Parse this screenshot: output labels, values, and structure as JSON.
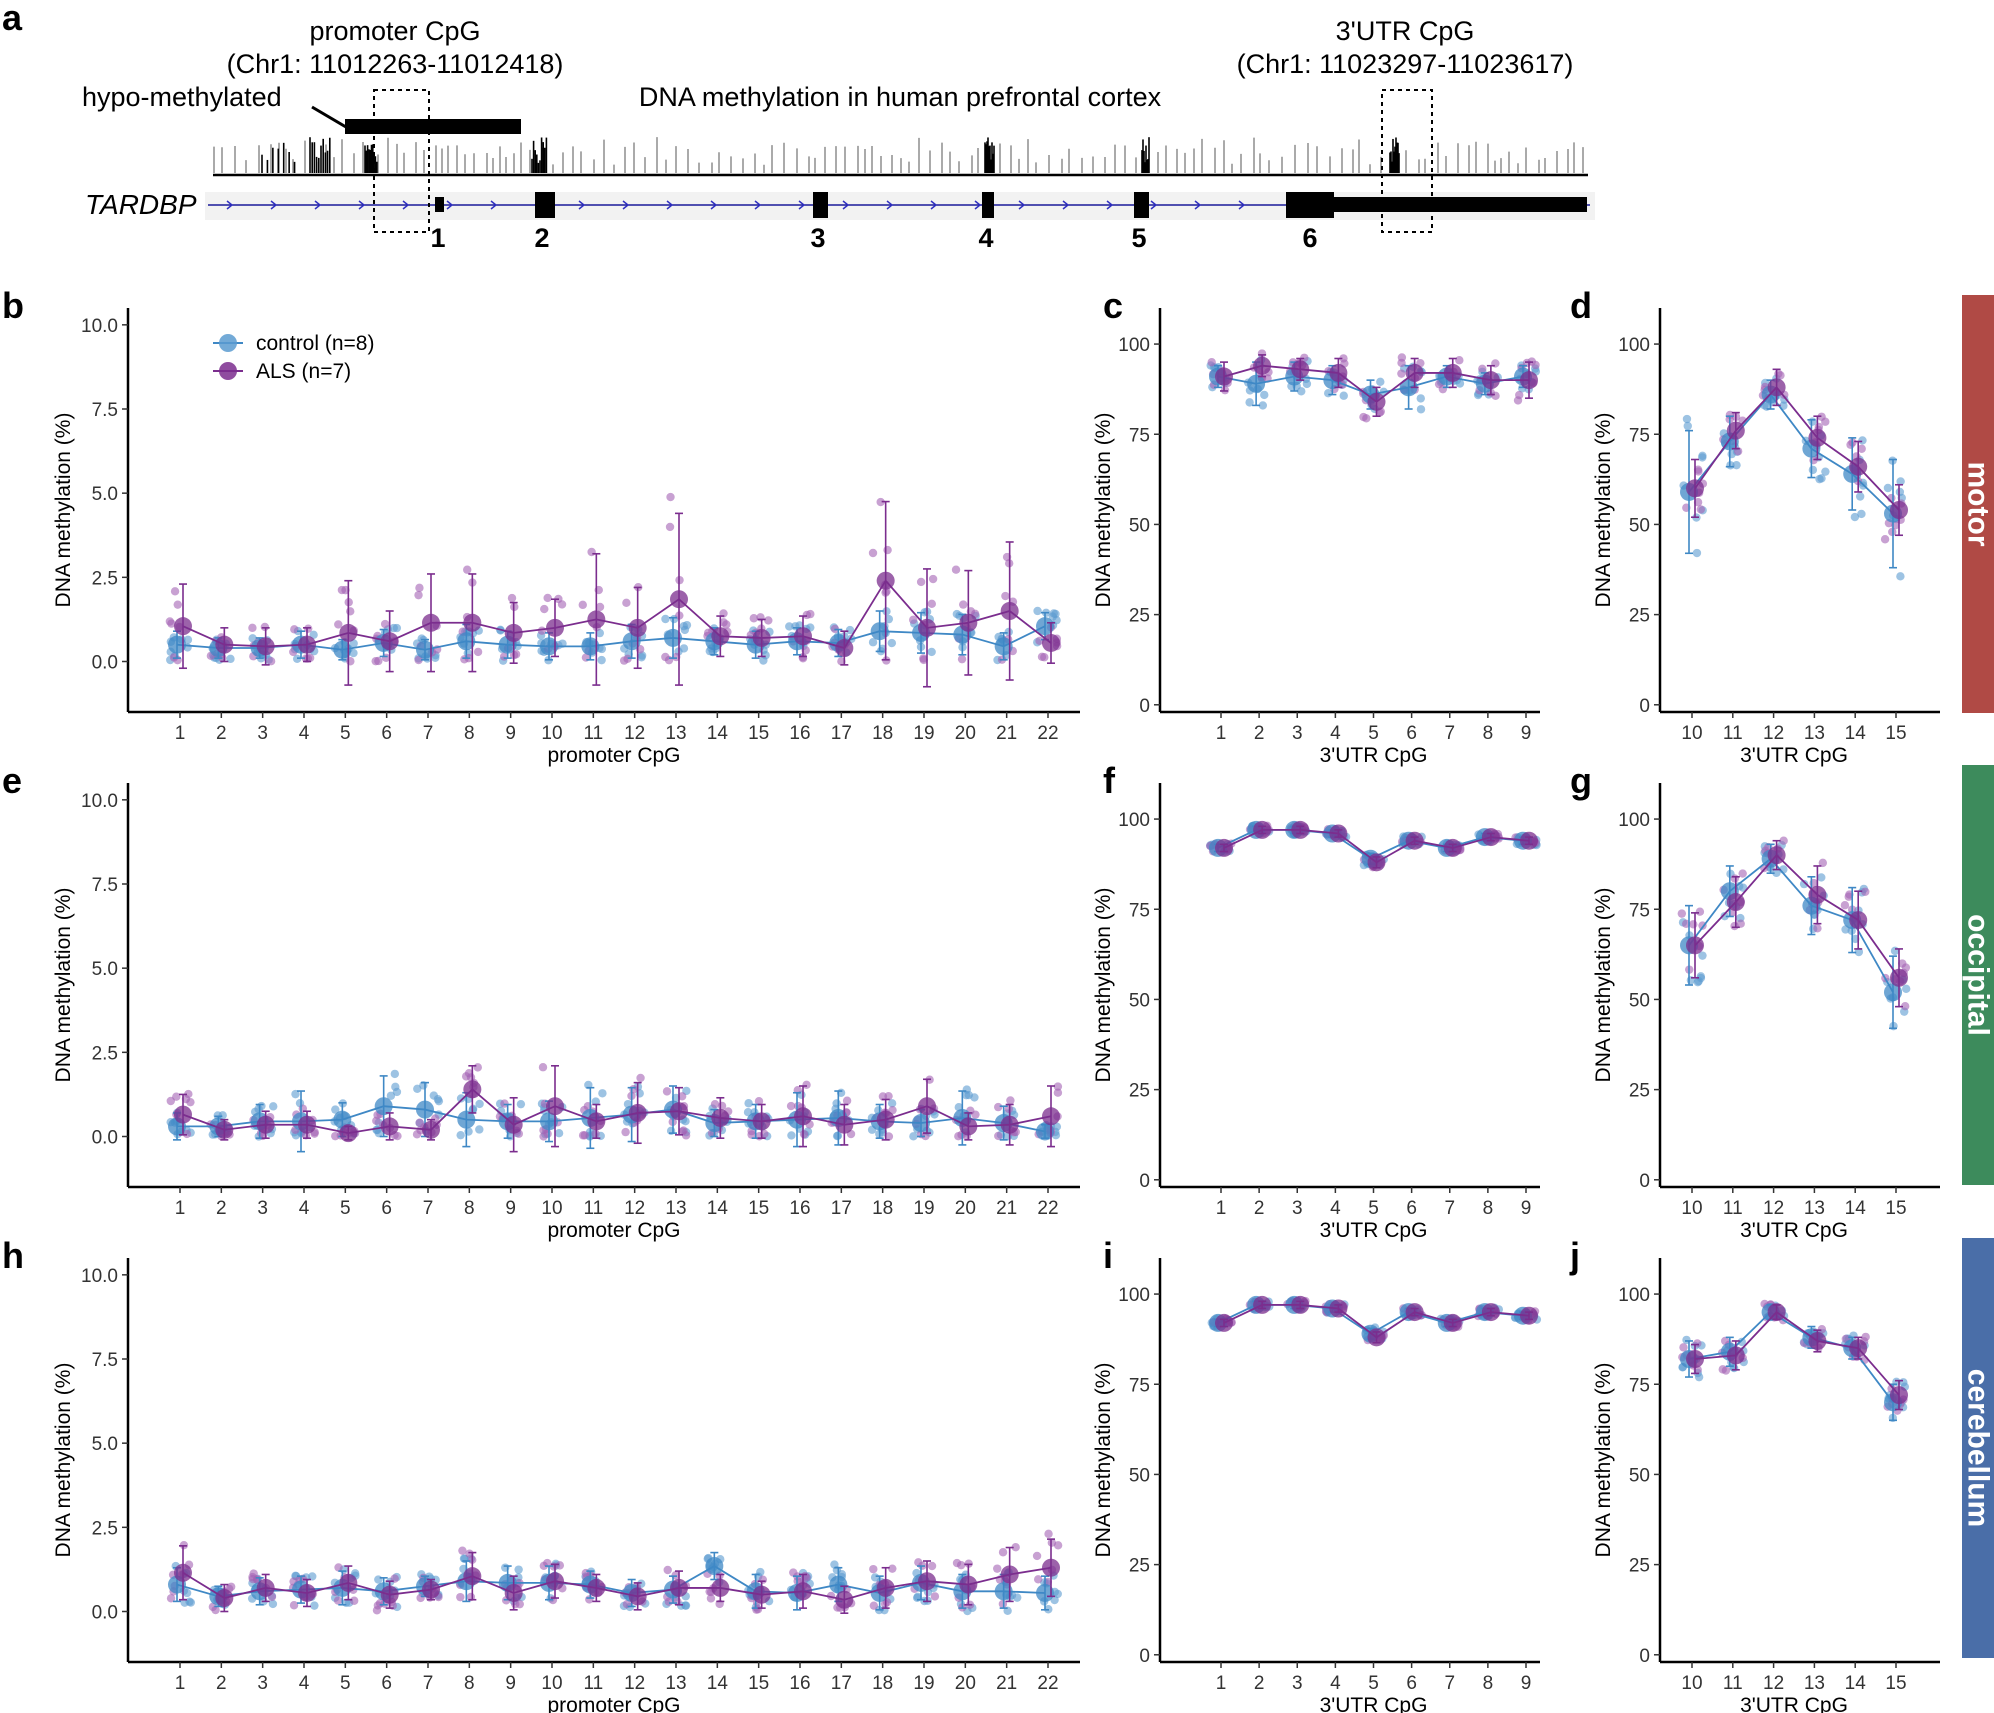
{
  "colors": {
    "control": "#5b9bd0",
    "control_line": "#3f88c5",
    "als": "#7b2d8e",
    "als_light": "#a463b4",
    "motor": "#b04a45",
    "occipital": "#3d8b5c",
    "cerebellum": "#4a6ea8"
  },
  "panel_a": {
    "letter": "a",
    "gene": "TARDBP",
    "promoter_label": "promoter CpG",
    "promoter_coords": "(Chr1: 11012263-11012418)",
    "utr_label": "3'UTR CpG",
    "utr_coords": "(Chr1: 11023297-11023617)",
    "hypo_label": "hypo-methylated",
    "track_title": "DNA methylation in human prefrontal cortex",
    "exons": [
      "1",
      "2",
      "3",
      "4",
      "5",
      "6"
    ]
  },
  "legend": {
    "control": "control (n=8)",
    "als": "ALS (n=7)"
  },
  "regions": [
    "motor",
    "occipital",
    "cerebellum"
  ],
  "axis_titles": {
    "y": "DNA methylation (%)",
    "x_promoter": "promoter CpG",
    "x_utr": "3'UTR CpG"
  },
  "chart_data": [
    {
      "panel": "b",
      "region": "motor",
      "type": "scatter-line",
      "xlabel": "promoter CpG",
      "ylabel": "DNA methylation (%)",
      "x": [
        1,
        2,
        3,
        4,
        5,
        6,
        7,
        8,
        9,
        10,
        11,
        12,
        13,
        14,
        15,
        16,
        17,
        18,
        19,
        20,
        21,
        22
      ],
      "ylim": [
        -1.5,
        10.5
      ],
      "yticks": [
        "0.0",
        "2.5",
        "5.0",
        "7.5",
        "10.0"
      ],
      "series": [
        {
          "name": "control (n=8)",
          "values": [
            0.5,
            0.4,
            0.4,
            0.5,
            0.35,
            0.55,
            0.35,
            0.6,
            0.5,
            0.45,
            0.45,
            0.6,
            0.7,
            0.6,
            0.5,
            0.6,
            0.55,
            0.9,
            0.85,
            0.8,
            0.45,
            1.05
          ],
          "sd": [
            0.4,
            0.3,
            0.3,
            0.4,
            0.3,
            0.4,
            0.3,
            0.5,
            0.4,
            0.4,
            0.4,
            0.5,
            0.6,
            0.4,
            0.4,
            0.4,
            0.4,
            0.6,
            0.6,
            0.6,
            0.4,
            0.4
          ]
        },
        {
          "name": "ALS (n=7)",
          "values": [
            1.05,
            0.5,
            0.45,
            0.5,
            0.85,
            0.6,
            1.15,
            1.15,
            0.85,
            1.0,
            1.25,
            1.0,
            1.85,
            0.75,
            0.7,
            0.75,
            0.4,
            2.4,
            1.0,
            1.15,
            1.5,
            0.55
          ],
          "sd": [
            1.25,
            0.5,
            0.55,
            0.5,
            1.55,
            0.9,
            1.45,
            1.45,
            0.9,
            0.85,
            1.95,
            1.2,
            2.55,
            0.6,
            0.55,
            0.6,
            0.5,
            2.35,
            1.75,
            1.55,
            2.05,
            0.6
          ]
        }
      ]
    },
    {
      "panel": "c",
      "region": "motor",
      "type": "scatter-line",
      "xlabel": "3'UTR CpG",
      "ylabel": "DNA methylation (%)",
      "x": [
        1,
        2,
        3,
        4,
        5,
        6,
        7,
        8,
        9
      ],
      "ylim": [
        -2,
        110
      ],
      "yticks": [
        "0",
        "25",
        "50",
        "75",
        "100"
      ],
      "series": [
        {
          "name": "control (n=8)",
          "values": [
            91,
            89,
            91,
            90,
            86,
            88,
            91,
            89,
            91
          ],
          "sd": [
            3,
            6,
            4,
            4,
            4,
            6,
            3,
            3,
            3
          ]
        },
        {
          "name": "ALS (n=7)",
          "values": [
            91,
            94,
            93,
            92,
            84,
            92,
            92,
            90,
            90
          ],
          "sd": [
            4,
            3,
            3,
            4,
            4,
            4,
            4,
            4,
            5
          ]
        }
      ]
    },
    {
      "panel": "d",
      "region": "motor",
      "type": "scatter-line",
      "xlabel": "3'UTR CpG",
      "ylabel": "DNA methylation (%)",
      "x": [
        10,
        11,
        12,
        13,
        14,
        15
      ],
      "ylim": [
        -2,
        110
      ],
      "yticks": [
        "0",
        "25",
        "50",
        "75",
        "100"
      ],
      "series": [
        {
          "name": "control (n=8)",
          "values": [
            59,
            73,
            86,
            71,
            64,
            53
          ],
          "sd": [
            17,
            7,
            4,
            8,
            10,
            15
          ]
        },
        {
          "name": "ALS (n=7)",
          "values": [
            60,
            76,
            88,
            74,
            66,
            54
          ],
          "sd": [
            8,
            5,
            5,
            6,
            7,
            7
          ]
        }
      ]
    },
    {
      "panel": "e",
      "region": "occipital",
      "type": "scatter-line",
      "xlabel": "promoter CpG",
      "ylabel": "DNA methylation (%)",
      "x": [
        1,
        2,
        3,
        4,
        5,
        6,
        7,
        8,
        9,
        10,
        11,
        12,
        13,
        14,
        15,
        16,
        17,
        18,
        19,
        20,
        21,
        22
      ],
      "ylim": [
        -1.5,
        10.5
      ],
      "yticks": [
        "0.0",
        "2.5",
        "5.0",
        "7.5",
        "10.0"
      ],
      "series": [
        {
          "name": "control (n=8)",
          "values": [
            0.3,
            0.3,
            0.45,
            0.45,
            0.5,
            0.9,
            0.8,
            0.5,
            0.45,
            0.45,
            0.55,
            0.65,
            0.8,
            0.4,
            0.45,
            0.5,
            0.55,
            0.45,
            0.4,
            0.55,
            0.4,
            0.15
          ],
          "sd": [
            0.4,
            0.3,
            0.5,
            0.9,
            0.5,
            0.9,
            0.8,
            0.8,
            0.5,
            0.6,
            0.9,
            0.8,
            0.7,
            0.4,
            0.5,
            0.8,
            0.8,
            0.5,
            0.4,
            0.8,
            0.5,
            0.2
          ]
        },
        {
          "name": "ALS (n=7)",
          "values": [
            0.65,
            0.2,
            0.35,
            0.35,
            0.1,
            0.3,
            0.2,
            1.4,
            0.35,
            0.9,
            0.45,
            0.7,
            0.75,
            0.55,
            0.45,
            0.6,
            0.35,
            0.5,
            0.9,
            0.3,
            0.35,
            0.6
          ],
          "sd": [
            0.6,
            0.3,
            0.4,
            0.4,
            0.2,
            0.4,
            0.3,
            0.7,
            0.8,
            1.2,
            0.5,
            0.9,
            0.7,
            0.6,
            0.5,
            0.9,
            0.6,
            0.6,
            0.8,
            0.4,
            0.6,
            0.9
          ]
        }
      ]
    },
    {
      "panel": "f",
      "region": "occipital",
      "type": "scatter-line",
      "xlabel": "3'UTR CpG",
      "ylabel": "DNA methylation (%)",
      "x": [
        1,
        2,
        3,
        4,
        5,
        6,
        7,
        8,
        9
      ],
      "ylim": [
        -2,
        110
      ],
      "yticks": [
        "0",
        "25",
        "50",
        "75",
        "100"
      ],
      "series": [
        {
          "name": "control (n=8)",
          "values": [
            92,
            97,
            97,
            96,
            89,
            94,
            92,
            95,
            94
          ],
          "sd": [
            1,
            1,
            1,
            1,
            1.5,
            1,
            1,
            1,
            1
          ]
        },
        {
          "name": "ALS (n=7)",
          "values": [
            92,
            97,
            97,
            96,
            88,
            94,
            92,
            95,
            94
          ],
          "sd": [
            1,
            1,
            1,
            1,
            1.5,
            1,
            1,
            1,
            1
          ]
        }
      ]
    },
    {
      "panel": "g",
      "region": "occipital",
      "type": "scatter-line",
      "xlabel": "3'UTR CpG",
      "ylabel": "DNA methylation (%)",
      "x": [
        10,
        11,
        12,
        13,
        14,
        15
      ],
      "ylim": [
        -2,
        110
      ],
      "yticks": [
        "0",
        "25",
        "50",
        "75",
        "100"
      ],
      "series": [
        {
          "name": "control (n=8)",
          "values": [
            65,
            80,
            89,
            76,
            72,
            52
          ],
          "sd": [
            11,
            7,
            4,
            8,
            9,
            10
          ]
        },
        {
          "name": "ALS (n=7)",
          "values": [
            65,
            77,
            90,
            79,
            72,
            56
          ],
          "sd": [
            9,
            7,
            4,
            8,
            8,
            8
          ]
        }
      ]
    },
    {
      "panel": "h",
      "region": "cerebellum",
      "type": "scatter-line",
      "xlabel": "promoter CpG",
      "ylabel": "DNA methylation (%)",
      "x": [
        1,
        2,
        3,
        4,
        5,
        6,
        7,
        8,
        9,
        10,
        11,
        12,
        13,
        14,
        15,
        16,
        17,
        18,
        19,
        20,
        21,
        22
      ],
      "ylim": [
        -1.5,
        10.5
      ],
      "yticks": [
        "0.0",
        "2.5",
        "5.0",
        "7.5",
        "10.0"
      ],
      "series": [
        {
          "name": "control (n=8)",
          "values": [
            0.8,
            0.45,
            0.6,
            0.65,
            0.7,
            0.6,
            0.75,
            0.9,
            0.85,
            0.85,
            0.8,
            0.55,
            0.65,
            1.35,
            0.6,
            0.55,
            0.8,
            0.55,
            0.85,
            0.6,
            0.6,
            0.55
          ],
          "sd": [
            0.5,
            0.3,
            0.4,
            0.4,
            0.5,
            0.4,
            0.3,
            0.6,
            0.5,
            0.5,
            0.4,
            0.4,
            0.4,
            0.4,
            0.5,
            0.5,
            0.5,
            0.5,
            0.5,
            0.5,
            0.5,
            0.5
          ]
        },
        {
          "name": "ALS (n=7)",
          "values": [
            1.15,
            0.4,
            0.7,
            0.55,
            0.85,
            0.5,
            0.65,
            1.05,
            0.55,
            0.9,
            0.7,
            0.45,
            0.7,
            0.7,
            0.5,
            0.6,
            0.35,
            0.7,
            0.9,
            0.8,
            1.1,
            1.3
          ],
          "sd": [
            0.8,
            0.4,
            0.4,
            0.4,
            0.5,
            0.4,
            0.3,
            0.7,
            0.5,
            0.5,
            0.4,
            0.4,
            0.5,
            0.4,
            0.4,
            0.5,
            0.4,
            0.6,
            0.6,
            0.6,
            0.8,
            0.85
          ]
        }
      ]
    },
    {
      "panel": "i",
      "region": "cerebellum",
      "type": "scatter-line",
      "xlabel": "3'UTR CpG",
      "ylabel": "DNA methylation (%)",
      "x": [
        1,
        2,
        3,
        4,
        5,
        6,
        7,
        8,
        9
      ],
      "ylim": [
        -2,
        110
      ],
      "yticks": [
        "0",
        "25",
        "50",
        "75",
        "100"
      ],
      "series": [
        {
          "name": "control (n=8)",
          "values": [
            92,
            97,
            97,
            96,
            89,
            95,
            92,
            95,
            94
          ],
          "sd": [
            1,
            1,
            1,
            1,
            1.5,
            1,
            1,
            1,
            1
          ]
        },
        {
          "name": "ALS (n=7)",
          "values": [
            92,
            97,
            97,
            96,
            88,
            95,
            92,
            95,
            94
          ],
          "sd": [
            1,
            1,
            1,
            1,
            1.5,
            1,
            1,
            1,
            1
          ]
        }
      ]
    },
    {
      "panel": "j",
      "region": "cerebellum",
      "type": "scatter-line",
      "xlabel": "3'UTR CpG",
      "ylabel": "DNA methylation (%)",
      "x": [
        10,
        11,
        12,
        13,
        14,
        15
      ],
      "ylim": [
        -2,
        110
      ],
      "yticks": [
        "0",
        "25",
        "50",
        "75",
        "100"
      ],
      "series": [
        {
          "name": "control (n=8)",
          "values": [
            82,
            84,
            95,
            88,
            85,
            70
          ],
          "sd": [
            5,
            4,
            2,
            3,
            3,
            5
          ]
        },
        {
          "name": "ALS (n=7)",
          "values": [
            82,
            83,
            95,
            87,
            85,
            72
          ],
          "sd": [
            4,
            4,
            2,
            3,
            3,
            4
          ]
        }
      ]
    }
  ]
}
